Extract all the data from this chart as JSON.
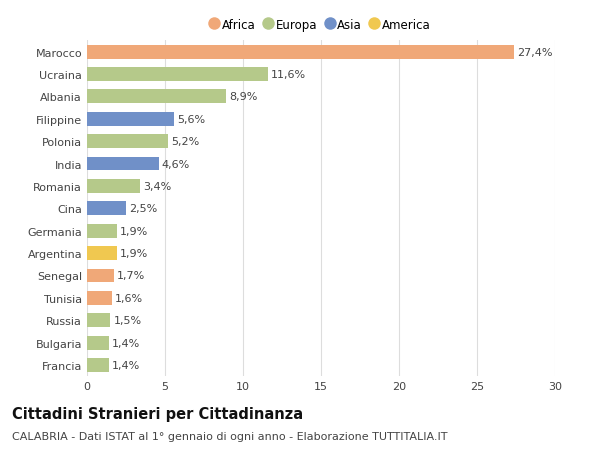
{
  "countries": [
    "Marocco",
    "Ucraina",
    "Albania",
    "Filippine",
    "Polonia",
    "India",
    "Romania",
    "Cina",
    "Germania",
    "Argentina",
    "Senegal",
    "Tunisia",
    "Russia",
    "Bulgaria",
    "Francia"
  ],
  "values": [
    27.4,
    11.6,
    8.9,
    5.6,
    5.2,
    4.6,
    3.4,
    2.5,
    1.9,
    1.9,
    1.7,
    1.6,
    1.5,
    1.4,
    1.4
  ],
  "labels": [
    "27,4%",
    "11,6%",
    "8,9%",
    "5,6%",
    "5,2%",
    "4,6%",
    "3,4%",
    "2,5%",
    "1,9%",
    "1,9%",
    "1,7%",
    "1,6%",
    "1,5%",
    "1,4%",
    "1,4%"
  ],
  "continent": [
    "Africa",
    "Europa",
    "Europa",
    "Asia",
    "Europa",
    "Asia",
    "Europa",
    "Asia",
    "Europa",
    "America",
    "Africa",
    "Africa",
    "Europa",
    "Europa",
    "Europa"
  ],
  "colors": {
    "Africa": "#F0A878",
    "Europa": "#B5C98A",
    "Asia": "#7090C8",
    "America": "#F0C850"
  },
  "legend_order": [
    "Africa",
    "Europa",
    "Asia",
    "America"
  ],
  "title": "Cittadini Stranieri per Cittadinanza",
  "subtitle": "CALABRIA - Dati ISTAT al 1° gennaio di ogni anno - Elaborazione TUTTITALIA.IT",
  "xlim": [
    0,
    30
  ],
  "xticks": [
    0,
    5,
    10,
    15,
    20,
    25,
    30
  ],
  "background_color": "#ffffff",
  "grid_color": "#dddddd",
  "bar_height": 0.62,
  "label_fontsize": 8,
  "title_fontsize": 10.5,
  "subtitle_fontsize": 8,
  "tick_fontsize": 8,
  "legend_fontsize": 8.5
}
